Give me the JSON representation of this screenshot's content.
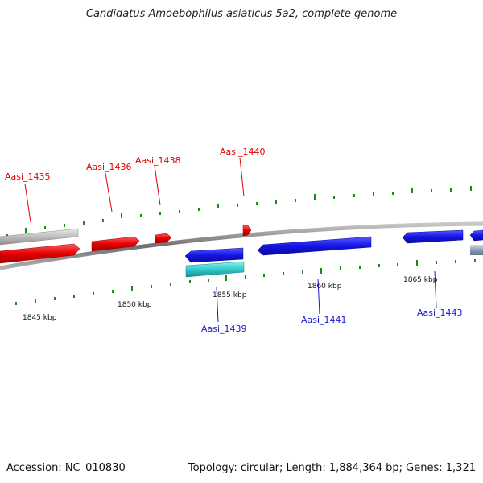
{
  "title": "Candidatus Amoebophilus asiaticus 5a2, complete genome",
  "accession_text": "Accession: NC_010830",
  "summary_text": "Topology: circular; Length: 1,884,364 bp; Genes: 1,321",
  "colors": {
    "forward_strand": "#e60000",
    "reverse_strand": "#1414e6",
    "other_feature": "#bfbfbf",
    "rna_feature": "#33cccc",
    "tick": "#1a8a1a",
    "backbone": "#7a7a7a",
    "forward_label": "#e00000",
    "reverse_label": "#1a1acc"
  },
  "forward_gene_labels": [
    "Aasi_1435",
    "Aasi_1436",
    "Aasi_1438",
    "Aasi_1440"
  ],
  "reverse_gene_labels": [
    "Aasi_1439",
    "Aasi_1441",
    "Aasi_1443"
  ],
  "kbp_labels": [
    "1845 kbp",
    "1850 kbp",
    "1855 kbp",
    "1860 kbp",
    "1865 kbp"
  ]
}
